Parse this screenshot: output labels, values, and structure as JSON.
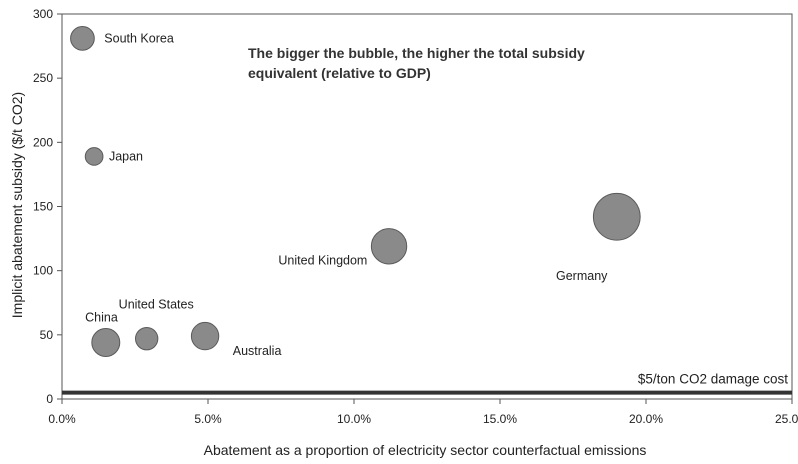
{
  "chart_data": {
    "type": "scatter",
    "subtype": "bubble",
    "title": "",
    "xlabel": "Abatement as a proportion of electricity sector counterfactual emissions",
    "ylabel": "Implicit abatement subsidy ($/t CO2)",
    "xlim": [
      0,
      0.25
    ],
    "ylim": [
      0,
      300
    ],
    "x_ticks": [
      0,
      0.05,
      0.1,
      0.15,
      0.2,
      0.25
    ],
    "x_tick_labels": [
      "0.0%",
      "5.0%",
      "10.0%",
      "15.0%",
      "20.0%",
      "25.0%"
    ],
    "y_ticks": [
      0,
      50,
      100,
      150,
      200,
      250,
      300
    ],
    "y_tick_labels": [
      "0",
      "50",
      "100",
      "150",
      "200",
      "250",
      "300"
    ],
    "grid": false,
    "bubble_color": "#8a8a8a",
    "annotation": {
      "line1": "The bigger the bubble, the higher the total subsidy",
      "line2": "equivalent (relative to GDP)"
    },
    "reference_line": {
      "y": 5,
      "label": "$5/ton CO2 damage cost",
      "color": "#333333"
    },
    "points": [
      {
        "name": "South Korea",
        "x": 0.007,
        "y": 281,
        "size": 0.9
      },
      {
        "name": "Japan",
        "x": 0.011,
        "y": 189,
        "size": 0.5
      },
      {
        "name": "China",
        "x": 0.015,
        "y": 44,
        "size": 1.25
      },
      {
        "name": "United States",
        "x": 0.029,
        "y": 47,
        "size": 0.8
      },
      {
        "name": "Australia",
        "x": 0.049,
        "y": 49,
        "size": 1.2
      },
      {
        "name": "United Kingdom",
        "x": 0.112,
        "y": 119,
        "size": 2.0
      },
      {
        "name": "Germany",
        "x": 0.19,
        "y": 142,
        "size": 3.5
      }
    ]
  }
}
